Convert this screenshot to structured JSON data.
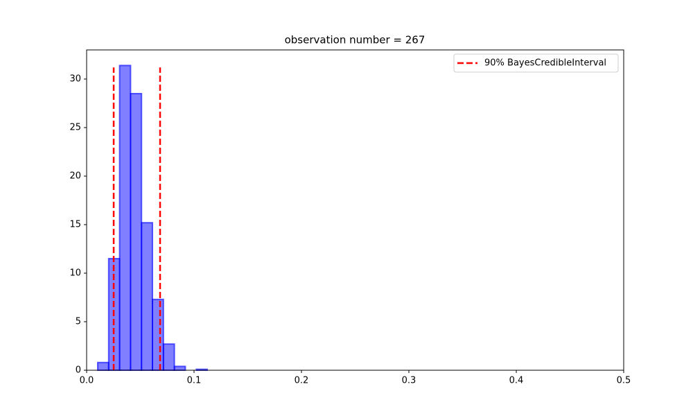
{
  "chart_data": {
    "type": "histogram",
    "title": "observation number = 267",
    "bins": [
      0.0103,
      0.0205,
      0.0307,
      0.0409,
      0.0511,
      0.0613,
      0.0715,
      0.0817,
      0.0919,
      0.1021,
      0.1123
    ],
    "values": [
      0.8,
      11.5,
      31.4,
      28.5,
      15.2,
      7.3,
      2.7,
      0.4,
      0,
      0.1
    ],
    "color": "#0000ff",
    "vlines": {
      "name": "90% BayesCredibleInterval",
      "color": "#ff0000",
      "x": [
        0.0252,
        0.0684
      ],
      "ymax": 31.2
    },
    "xlim": [
      0,
      0.5
    ],
    "xticks": [
      {
        "value": 0,
        "label": "0.0"
      },
      0.1,
      0.2,
      0.3,
      0.4,
      0.5
    ],
    "ylim": [
      0,
      33
    ],
    "yticks": [
      0,
      5,
      10,
      15,
      20,
      25,
      30
    ],
    "legend": "upper right"
  }
}
